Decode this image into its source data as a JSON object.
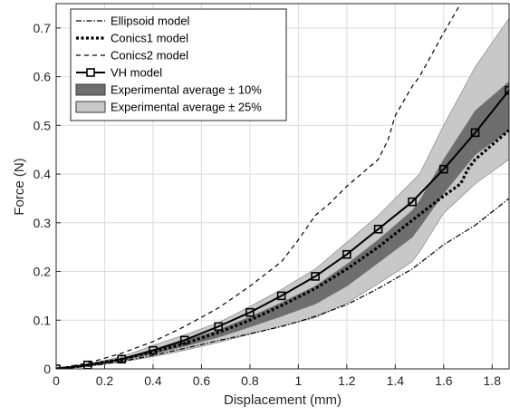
{
  "chart_data": {
    "type": "line",
    "xlabel": "Displacement  (mm)",
    "ylabel": "Force (N)",
    "xlim": [
      0,
      1.87
    ],
    "ylim": [
      0,
      0.75
    ],
    "xticks": [
      "0",
      "0.2",
      "0.4",
      "0.6",
      "0.8",
      "1",
      "1.2",
      "1.4",
      "1.6",
      "1.8"
    ],
    "yticks": [
      "0",
      "0.1",
      "0.2",
      "0.3",
      "0.4",
      "0.5",
      "0.6",
      "0.7"
    ],
    "grid": true,
    "legend_position": "top-left",
    "colors": {
      "dark_band": "#6e6e6e",
      "light_band": "#c8c8c8",
      "line": "#000000"
    },
    "bands": [
      {
        "name": "Experimental average ± 25%",
        "x": [
          0,
          0.13,
          0.27,
          0.4,
          0.53,
          0.67,
          0.8,
          0.93,
          1.07,
          1.2,
          1.33,
          1.47,
          1.5,
          1.6,
          1.73,
          1.87
        ],
        "lower": [
          0,
          0.006,
          0.014,
          0.025,
          0.038,
          0.054,
          0.071,
          0.088,
          0.105,
          0.135,
          0.175,
          0.22,
          0.24,
          0.32,
          0.38,
          0.43
        ],
        "upper": [
          0,
          0.01,
          0.025,
          0.048,
          0.07,
          0.095,
          0.128,
          0.163,
          0.205,
          0.26,
          0.315,
          0.385,
          0.4,
          0.5,
          0.62,
          0.72
        ]
      },
      {
        "name": "Experimental average ± 10%",
        "x": [
          0,
          0.13,
          0.27,
          0.4,
          0.53,
          0.67,
          0.8,
          0.93,
          1.07,
          1.2,
          1.33,
          1.47,
          1.5,
          1.6,
          1.73,
          1.87
        ],
        "lower": [
          0,
          0.007,
          0.017,
          0.031,
          0.046,
          0.065,
          0.086,
          0.108,
          0.133,
          0.17,
          0.218,
          0.27,
          0.29,
          0.36,
          0.44,
          0.49
        ],
        "upper": [
          0,
          0.009,
          0.021,
          0.04,
          0.058,
          0.08,
          0.107,
          0.136,
          0.17,
          0.215,
          0.265,
          0.325,
          0.345,
          0.43,
          0.53,
          0.59
        ]
      }
    ],
    "series": [
      {
        "name": "Ellipsoid model",
        "style": "dashdot",
        "x": [
          0,
          0.13,
          0.27,
          0.4,
          0.53,
          0.67,
          0.8,
          0.93,
          1.0,
          1.07,
          1.2,
          1.33,
          1.47,
          1.6,
          1.73,
          1.87
        ],
        "y": [
          0,
          0.005,
          0.015,
          0.028,
          0.042,
          0.058,
          0.072,
          0.087,
          0.097,
          0.108,
          0.132,
          0.165,
          0.205,
          0.255,
          0.295,
          0.35
        ]
      },
      {
        "name": "Conics1 model",
        "style": "dotted-thick",
        "x": [
          0,
          0.13,
          0.27,
          0.4,
          0.53,
          0.67,
          0.8,
          0.93,
          1.07,
          1.2,
          1.33,
          1.47,
          1.6,
          1.67,
          1.7,
          1.73,
          1.87
        ],
        "y": [
          0,
          0.008,
          0.02,
          0.035,
          0.052,
          0.075,
          0.1,
          0.13,
          0.165,
          0.205,
          0.25,
          0.305,
          0.355,
          0.38,
          0.41,
          0.43,
          0.49
        ]
      },
      {
        "name": "Conics2 model",
        "style": "dashed",
        "x": [
          0,
          0.13,
          0.27,
          0.4,
          0.53,
          0.67,
          0.8,
          0.93,
          1.0,
          1.07,
          1.13,
          1.2,
          1.33,
          1.37,
          1.4,
          1.47,
          1.5,
          1.6,
          1.67
        ],
        "y": [
          0,
          0.012,
          0.032,
          0.056,
          0.087,
          0.125,
          0.17,
          0.22,
          0.265,
          0.315,
          0.34,
          0.375,
          0.43,
          0.47,
          0.52,
          0.58,
          0.6,
          0.69,
          0.75
        ]
      },
      {
        "name": "VH model",
        "style": "solid-square",
        "x": [
          0,
          0.13,
          0.27,
          0.4,
          0.53,
          0.67,
          0.8,
          0.93,
          1.07,
          1.2,
          1.33,
          1.47,
          1.6,
          1.73,
          1.87
        ],
        "y": [
          0,
          0.008,
          0.02,
          0.038,
          0.059,
          0.087,
          0.116,
          0.15,
          0.19,
          0.235,
          0.287,
          0.343,
          0.41,
          0.485,
          0.572
        ]
      }
    ]
  }
}
